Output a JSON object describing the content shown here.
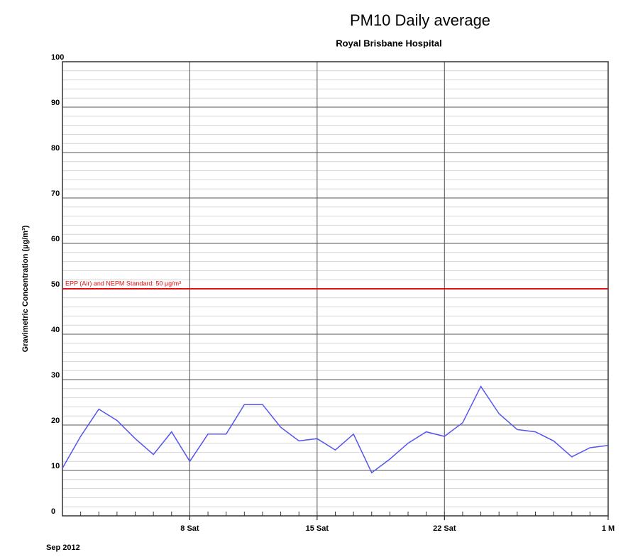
{
  "chart_data": {
    "type": "line",
    "title": "PM10 Daily average",
    "subtitle": "Royal Brisbane Hospital",
    "y_label": "Gravimetric Concentration (µg/m³)",
    "x_label": "Sep 2012",
    "x": [
      1,
      2,
      3,
      4,
      5,
      6,
      7,
      8,
      9,
      10,
      11,
      12,
      13,
      14,
      15,
      16,
      17,
      18,
      19,
      20,
      21,
      22,
      23,
      24,
      25,
      26,
      27,
      28,
      29,
      30,
      31
    ],
    "series": [
      {
        "name": "PM10",
        "color": "#5555ee",
        "values": [
          10.5,
          17.5,
          23.5,
          21,
          17,
          13.5,
          18.5,
          12,
          18,
          18,
          24.5,
          24.5,
          19.5,
          16.5,
          17,
          14.5,
          18,
          9.5,
          12.5,
          16,
          18.5,
          17.5,
          20.5,
          28.5,
          22.5,
          19,
          18.5,
          16.5,
          13,
          15,
          15.5
        ]
      }
    ],
    "xlim": [
      1,
      31
    ],
    "xticks": [
      {
        "value": 8,
        "label": "8 Sat"
      },
      {
        "value": 15,
        "label": "15 Sat"
      },
      {
        "value": 22,
        "label": "22 Sat"
      },
      {
        "value": 31,
        "label": "1 M"
      }
    ],
    "ylim": [
      0,
      100
    ],
    "yticks": [
      0,
      10,
      20,
      30,
      40,
      50,
      60,
      70,
      80,
      90,
      100
    ],
    "grid": true,
    "reference_lines": [
      {
        "value": 50,
        "label": "EPP (Air) and NEPM Standard: 50 µg/m³",
        "color": "#e01010"
      }
    ]
  }
}
